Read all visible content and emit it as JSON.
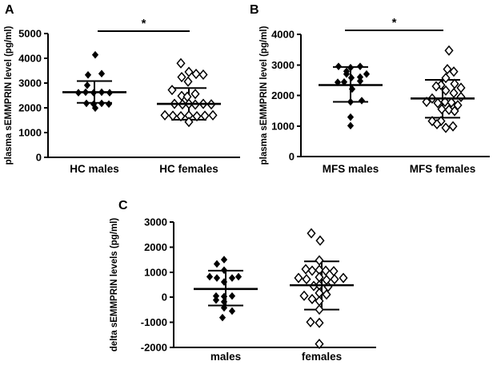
{
  "figure": {
    "background_color": "#ffffff",
    "ink_color": "#000000",
    "marker_legend": {
      "filled-diamond": "males",
      "open-diamond": "females"
    }
  },
  "chart_data": [
    {
      "type": "scatter",
      "panel_label": "A",
      "title": "",
      "xlabel": "",
      "ylabel": "plasma sEMMPRIN level (pg/ml)",
      "ylim": [
        0,
        5000
      ],
      "yticks": [
        0,
        1000,
        2000,
        3000,
        4000,
        5000
      ],
      "categories": [
        "HC males",
        "HC females"
      ],
      "grid": false,
      "significance": {
        "symbol": "*",
        "between": [
          "HC males",
          "HC females"
        ]
      },
      "groups": [
        {
          "label": "HC males",
          "marker": "filled-diamond",
          "mean": 2630,
          "sd_upper": 3080,
          "sd_lower": 2200,
          "points": [
            [
              1,
              4140
            ],
            [
              -8,
              3330
            ],
            [
              9,
              3380
            ],
            [
              -9,
              2910
            ],
            [
              -20,
              2610
            ],
            [
              -11,
              2630
            ],
            [
              -1,
              2610
            ],
            [
              9,
              2630
            ],
            [
              19,
              2610
            ],
            [
              -10,
              2180
            ],
            [
              -1,
              2150
            ],
            [
              9,
              2180
            ],
            [
              18,
              2150
            ],
            [
              1,
              1990
            ]
          ]
        },
        {
          "label": "HC females",
          "marker": "open-diamond",
          "mean": 2160,
          "sd_upper": 2800,
          "sd_lower": 1520,
          "points": [
            [
              -10,
              3800
            ],
            [
              0,
              3450
            ],
            [
              9,
              3370
            ],
            [
              18,
              3340
            ],
            [
              -9,
              3240
            ],
            [
              -1,
              3060
            ],
            [
              -21,
              2720
            ],
            [
              8,
              2560
            ],
            [
              -9,
              2480
            ],
            [
              -2,
              2450
            ],
            [
              -18,
              2160
            ],
            [
              -8,
              2140
            ],
            [
              0,
              2160
            ],
            [
              8,
              2130
            ],
            [
              18,
              2160
            ],
            [
              28,
              2140
            ],
            [
              -30,
              1700
            ],
            [
              -20,
              1680
            ],
            [
              -10,
              1660
            ],
            [
              0,
              1690
            ],
            [
              10,
              1660
            ],
            [
              20,
              1680
            ],
            [
              30,
              1700
            ],
            [
              0,
              1430
            ]
          ]
        }
      ]
    },
    {
      "type": "scatter",
      "panel_label": "B",
      "title": "",
      "xlabel": "",
      "ylabel": "plasma sEMMPRIN level (pg/ml)",
      "ylim": [
        0,
        4000
      ],
      "yticks": [
        0,
        1000,
        2000,
        3000,
        4000
      ],
      "categories": [
        "MFS males",
        "MFS females"
      ],
      "grid": false,
      "significance": {
        "symbol": "*",
        "between": [
          "MFS males",
          "MFS females"
        ]
      },
      "groups": [
        {
          "label": "MFS males",
          "marker": "filled-diamond",
          "mean": 2340,
          "sd_upper": 2930,
          "sd_lower": 1790,
          "points": [
            [
              -15,
              2950
            ],
            [
              0,
              2910
            ],
            [
              12,
              2950
            ],
            [
              -5,
              2790
            ],
            [
              -5,
              2700
            ],
            [
              20,
              2700
            ],
            [
              1,
              2580
            ],
            [
              12,
              2600
            ],
            [
              -16,
              2430
            ],
            [
              -8,
              2440
            ],
            [
              12,
              2470
            ],
            [
              2,
              2210
            ],
            [
              0,
              1790
            ],
            [
              14,
              1830
            ],
            [
              0,
              1290
            ],
            [
              0,
              1010
            ]
          ]
        },
        {
          "label": "MFS females",
          "marker": "open-diamond",
          "mean": 1900,
          "sd_upper": 2510,
          "sd_lower": 1270,
          "points": [
            [
              8,
              3470
            ],
            [
              6,
              2860
            ],
            [
              14,
              2780
            ],
            [
              4,
              2570
            ],
            [
              -2,
              2340
            ],
            [
              -8,
              2300
            ],
            [
              15,
              2380
            ],
            [
              23,
              2250
            ],
            [
              4,
              2160
            ],
            [
              14,
              2080
            ],
            [
              23,
              1950
            ],
            [
              -13,
              1900
            ],
            [
              -20,
              1790
            ],
            [
              -6,
              1750
            ],
            [
              3,
              1790
            ],
            [
              11,
              1770
            ],
            [
              19,
              1680
            ],
            [
              -1,
              1550
            ],
            [
              8,
              1530
            ],
            [
              15,
              1490
            ],
            [
              -13,
              1160
            ],
            [
              -2,
              1160
            ],
            [
              -7,
              1060
            ],
            [
              13,
              990
            ],
            [
              4,
              940
            ]
          ]
        }
      ]
    },
    {
      "type": "scatter",
      "panel_label": "C",
      "title": "",
      "xlabel": "",
      "ylabel": "delta sEMMPRIN levels (pg/ml)",
      "ylim": [
        -2000,
        3000
      ],
      "yticks": [
        -2000,
        -1000,
        0,
        1000,
        2000,
        3000
      ],
      "categories": [
        "males",
        "females"
      ],
      "grid": false,
      "significance": null,
      "groups": [
        {
          "label": "males",
          "marker": "filled-diamond",
          "mean": 330,
          "sd_upper": 1060,
          "sd_lower": -330,
          "points": [
            [
              -2,
              1500
            ],
            [
              -11,
              1330
            ],
            [
              -2,
              1080
            ],
            [
              -20,
              820
            ],
            [
              -11,
              770
            ],
            [
              8,
              770
            ],
            [
              16,
              820
            ],
            [
              -2,
              610
            ],
            [
              -12,
              50
            ],
            [
              -2,
              30
            ],
            [
              8,
              50
            ],
            [
              -12,
              -110
            ],
            [
              -2,
              -180
            ],
            [
              -2,
              -420
            ],
            [
              8,
              -550
            ],
            [
              -4,
              -810
            ]
          ]
        },
        {
          "label": "females",
          "marker": "open-diamond",
          "mean": 480,
          "sd_upper": 1430,
          "sd_lower": -490,
          "points": [
            [
              -13,
              2550
            ],
            [
              -2,
              2260
            ],
            [
              -3,
              1470
            ],
            [
              -20,
              1120
            ],
            [
              -12,
              1060
            ],
            [
              -3,
              1090
            ],
            [
              5,
              1060
            ],
            [
              15,
              1040
            ],
            [
              -29,
              770
            ],
            [
              -19,
              720
            ],
            [
              -3,
              800
            ],
            [
              6,
              690
            ],
            [
              16,
              720
            ],
            [
              27,
              770
            ],
            [
              -10,
              450
            ],
            [
              -3,
              480
            ],
            [
              8,
              420
            ],
            [
              -22,
              60
            ],
            [
              -3,
              170
            ],
            [
              6,
              110
            ],
            [
              -12,
              -70
            ],
            [
              -3,
              -150
            ],
            [
              -3,
              -490
            ],
            [
              -14,
              -990
            ],
            [
              -3,
              -1020
            ],
            [
              -3,
              -1860
            ]
          ]
        }
      ]
    }
  ]
}
